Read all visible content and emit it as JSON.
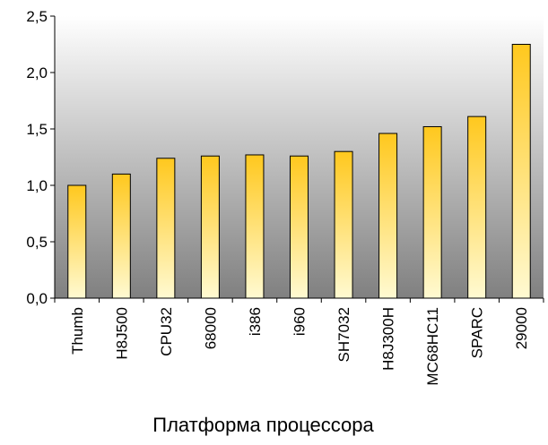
{
  "chart_data": {
    "type": "bar",
    "title": "",
    "xlabel": "Платформа процессора",
    "ylabel": "",
    "categories": [
      "Thumb",
      "H8J500",
      "CPU32",
      "68000",
      "i386",
      "i960",
      "SH7032",
      "H8J300H",
      "MC68HC11",
      "SPARC",
      "29000"
    ],
    "values": [
      1.0,
      1.1,
      1.24,
      1.26,
      1.27,
      1.26,
      1.3,
      1.46,
      1.52,
      1.61,
      2.25
    ],
    "ylim": [
      0,
      2.5
    ],
    "yticks": [
      0,
      0.5,
      1,
      1.5,
      2,
      2.5
    ],
    "ytick_labels": [
      "0,0",
      "0,5",
      "1,0",
      "1,5",
      "2,0",
      "2,5"
    ],
    "grid": false,
    "legend": "none",
    "colors": {
      "bar_top": "#ffc81e",
      "bar_bottom": "#fffad2",
      "plot_bg_top": "#ffffff",
      "plot_bg_bottom": "#808080",
      "axis": "#000000"
    }
  }
}
